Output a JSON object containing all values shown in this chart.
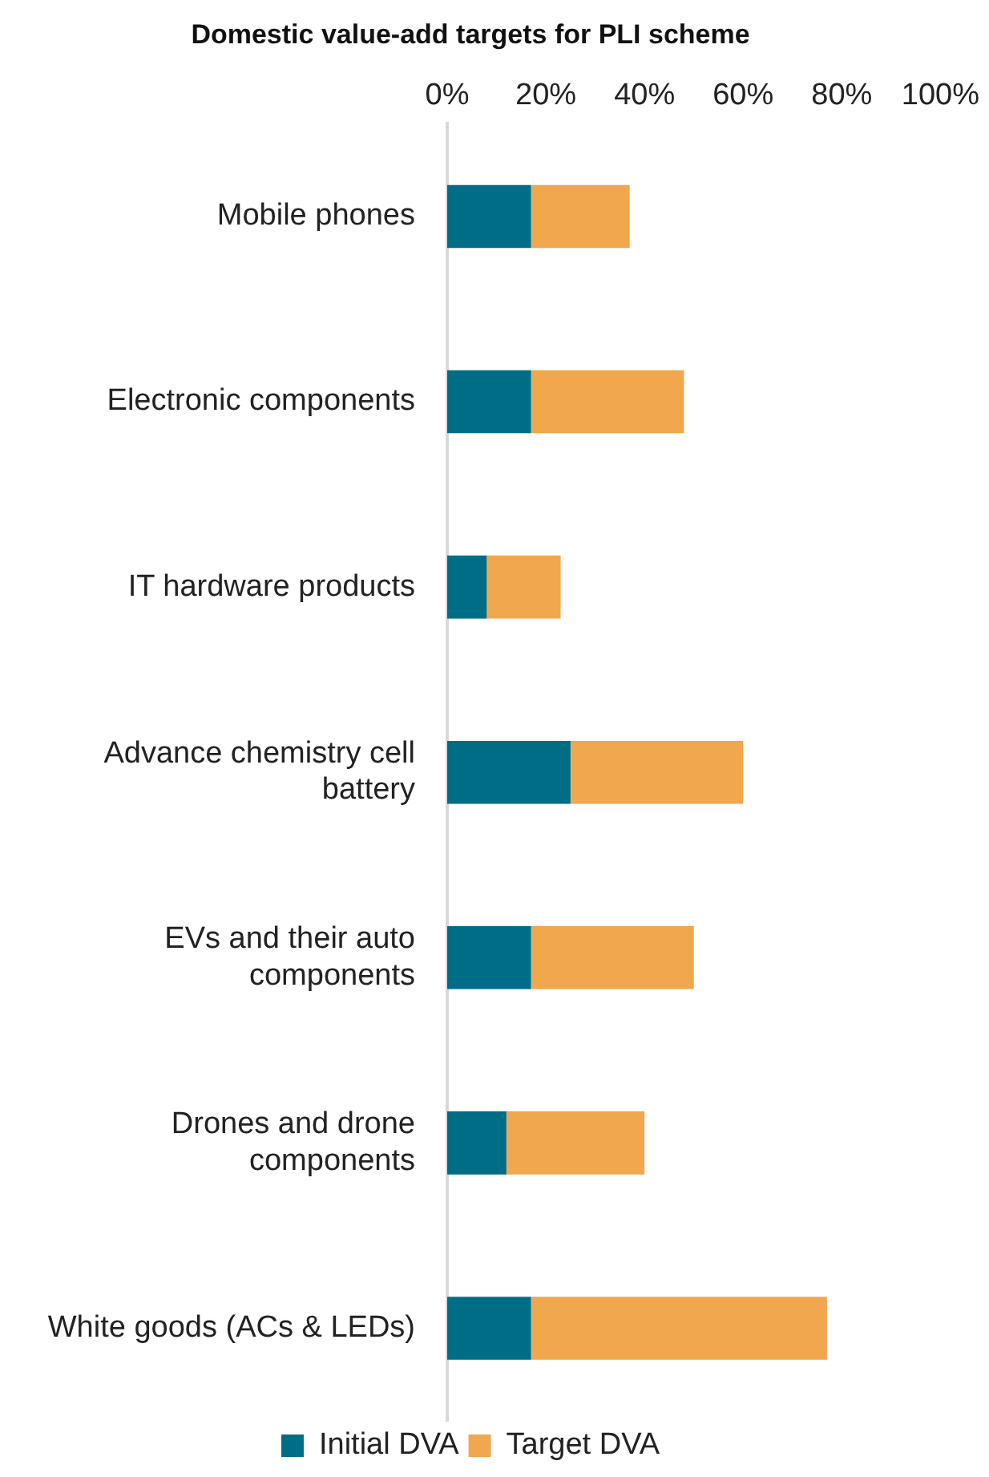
{
  "chart_data": {
    "type": "bar",
    "title": "Domestic value-add targets for PLI scheme",
    "orientation": "horizontal",
    "stacked": true,
    "categories": [
      "Mobile phones",
      "Electronic components",
      "IT hardware products",
      "Advance chemistry cell battery",
      "EVs and their auto components",
      "Drones and drone components",
      "White goods (ACs & LEDs)"
    ],
    "series": [
      {
        "name": "Initial DVA",
        "color": "#006d87",
        "values": [
          17,
          17,
          8,
          25,
          17,
          12,
          17
        ]
      },
      {
        "name": "Target DVA",
        "color": "#f0a74e",
        "values": [
          20,
          31,
          15,
          35,
          33,
          28,
          60
        ]
      }
    ],
    "xlim": [
      0,
      100
    ],
    "xticks": [
      {
        "value": 0,
        "label": "0%"
      },
      {
        "value": 20,
        "label": "20%"
      },
      {
        "value": 40,
        "label": "40%"
      },
      {
        "value": 60,
        "label": "60%"
      },
      {
        "value": 80,
        "label": "80%"
      },
      {
        "value": 100,
        "label": "100%"
      }
    ],
    "grid": false,
    "legend": "bottom"
  }
}
